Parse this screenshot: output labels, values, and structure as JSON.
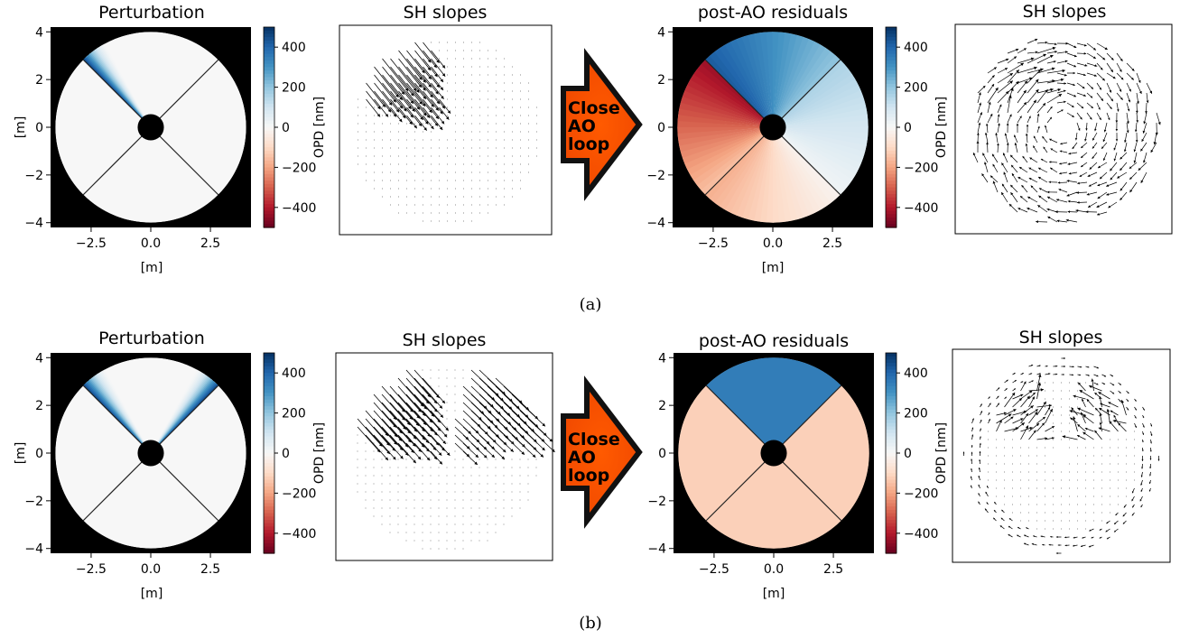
{
  "figure": {
    "rows": [
      {
        "caption": "(a)",
        "arrow_lines": [
          "Close",
          "AO",
          "loop"
        ],
        "chart_data": [
          {
            "type": "heatmap",
            "title": "Perturbation",
            "xlabel": "[m]",
            "ylabel": "[m]",
            "xlim": [
              -4.2,
              4.2
            ],
            "ylim": [
              -4.2,
              4.2
            ],
            "xticks": [
              -2.5,
              0.0,
              2.5
            ],
            "xtick_labels": [
              "−2.5",
              "0.0",
              "2.5"
            ],
            "yticks": [
              -4,
              -2,
              0,
              2,
              4
            ],
            "ytick_labels": [
              "−4",
              "−2",
              "0",
              "2",
              "4"
            ],
            "pupil_radius_m": 4.0,
            "obscuration_radius_m": 0.55,
            "spider_angles_deg": [
              45,
              135,
              225,
              315
            ],
            "perturbed_segment_deg": [
              90,
              135
            ],
            "perturbation_peak_nm": 450,
            "colorbar": {
              "label": "OPD [nm]",
              "range": [
                -500,
                500
              ],
              "ticks": [
                400,
                200,
                0,
                -200,
                -400
              ],
              "tick_labels": [
                "400",
                "200",
                "0",
                "−200",
                "−400"
              ]
            }
          },
          {
            "type": "scatter",
            "title": "SH slopes",
            "pattern": "arrows along the perturbed upper-left segment",
            "active_sectors_deg": [
              [
                90,
                150
              ]
            ]
          },
          {
            "type": "heatmap",
            "title": "post-AO residuals",
            "xlabel": "[m]",
            "ylabel": "",
            "xlim": [
              -4.2,
              4.2
            ],
            "ylim": [
              -4.2,
              4.2
            ],
            "xticks": [
              -2.5,
              0.0,
              2.5
            ],
            "xtick_labels": [
              "−2.5",
              "0.0",
              "2.5"
            ],
            "yticks": [
              -4,
              -2,
              0,
              2,
              4
            ],
            "ytick_labels": [
              "−4",
              "−2",
              "0",
              "2",
              "4"
            ],
            "segment_values_nm": {
              "top": "gradient from 420 (left) to 200 (right)",
              "right": "gradient from 160 (top) to 20 (bottom)",
              "bottom": "gradient from -180 (left) to -20 (right)",
              "left": "gradient from -430 (top) to -150 (bottom)"
            },
            "colorbar": {
              "label": "OPD [nm]",
              "range": [
                -500,
                500
              ],
              "ticks": [
                400,
                200,
                0,
                -200,
                -400
              ],
              "tick_labels": [
                "400",
                "200",
                "0",
                "−200",
                "−400"
              ]
            }
          },
          {
            "type": "scatter",
            "title": "SH slopes",
            "pattern": "swirling arrows across the whole pupil"
          }
        ]
      },
      {
        "caption": "(b)",
        "arrow_lines": [
          "Close",
          "AO",
          "loop"
        ],
        "chart_data": [
          {
            "type": "heatmap",
            "title": "Perturbation",
            "xlabel": "[m]",
            "ylabel": "[m]",
            "xlim": [
              -4.2,
              4.2
            ],
            "ylim": [
              -4.2,
              4.2
            ],
            "xticks": [
              -2.5,
              0.0,
              2.5
            ],
            "xtick_labels": [
              "−2.5",
              "0.0",
              "2.5"
            ],
            "yticks": [
              -4,
              -2,
              0,
              2,
              4
            ],
            "ytick_labels": [
              "−4",
              "−2",
              "0",
              "2",
              "4"
            ],
            "pupil_radius_m": 4.0,
            "obscuration_radius_m": 0.55,
            "spider_angles_deg": [
              45,
              135,
              225,
              315
            ],
            "perturbed_segment_deg": [
              45,
              135
            ],
            "perturbation_peak_nm": 450,
            "colorbar": {
              "label": "OPD [nm]",
              "range": [
                -500,
                500
              ],
              "ticks": [
                400,
                200,
                0,
                -200,
                -400
              ],
              "tick_labels": [
                "400",
                "200",
                "0",
                "−200",
                "−400"
              ]
            }
          },
          {
            "type": "scatter",
            "title": "SH slopes",
            "pattern": "arrows along both edges of the top segment",
            "active_sectors_deg": [
              [
                105,
                150
              ],
              [
                30,
                75
              ]
            ]
          },
          {
            "type": "heatmap",
            "title": "post-AO residuals",
            "xlabel": "[m]",
            "ylabel": "",
            "xlim": [
              -4.2,
              4.2
            ],
            "ylim": [
              -4.2,
              4.2
            ],
            "xticks": [
              -2.5,
              0.0,
              2.5
            ],
            "xtick_labels": [
              "−2.5",
              "0.0",
              "2.5"
            ],
            "yticks": [
              -4,
              -2,
              0,
              2,
              4
            ],
            "ytick_labels": [
              "−4",
              "−2",
              "0",
              "2",
              "4"
            ],
            "segment_values_nm": {
              "top": 350,
              "right": -120,
              "bottom": -120,
              "left": -120
            },
            "colorbar": {
              "label": "OPD [nm]",
              "range": [
                -500,
                500
              ],
              "ticks": [
                400,
                200,
                0,
                -200,
                -400
              ],
              "tick_labels": [
                "400",
                "200",
                "0",
                "−200",
                "−400"
              ]
            }
          },
          {
            "type": "scatter",
            "title": "SH slopes",
            "pattern": "arrows along both edges of the top segment plus pupil rim"
          }
        ]
      }
    ]
  }
}
